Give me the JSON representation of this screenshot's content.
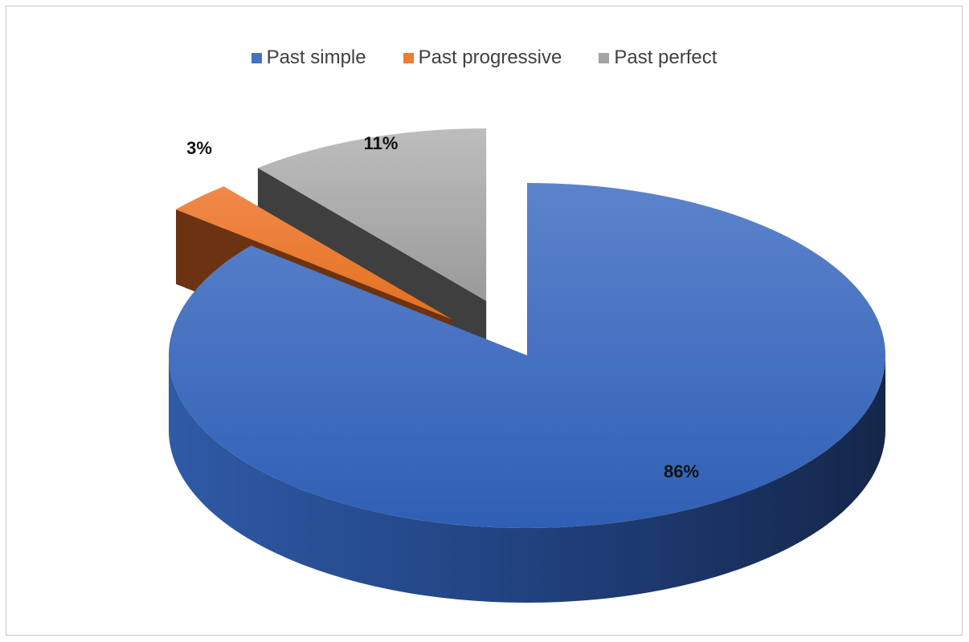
{
  "chart_data": {
    "type": "pie",
    "title": "",
    "categories": [
      "Past simple",
      "Past progressive",
      "Past perfect"
    ],
    "values": [
      86,
      3,
      11
    ],
    "unit": "%",
    "data_labels": [
      "86%",
      "3%",
      "11%"
    ],
    "colors": [
      "#4472C4",
      "#ED7D31",
      "#A5A5A5"
    ],
    "style": "3d-exploded",
    "legend_position": "top"
  }
}
